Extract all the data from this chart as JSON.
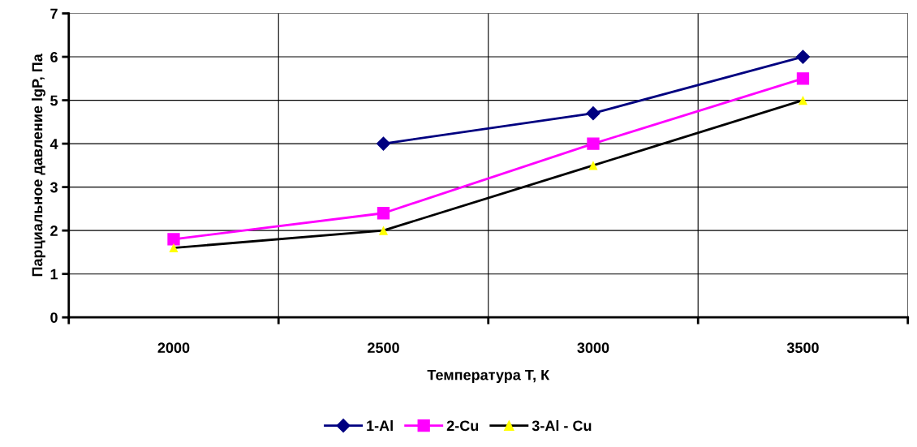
{
  "chart_data": {
    "type": "line",
    "xlabel": "Температура Т, К",
    "ylabel": "Парциальное давление lgP, Па",
    "categories": [
      "2000",
      "2500",
      "3000",
      "3500"
    ],
    "series": [
      {
        "name": "1-Al",
        "color": "#000080",
        "marker": "diamond",
        "values": [
          null,
          4.0,
          4.7,
          6.0
        ]
      },
      {
        "name": "2-Cu",
        "color": "#ff00ff",
        "marker": "square",
        "values": [
          1.8,
          2.4,
          4.0,
          5.5
        ]
      },
      {
        "name": "3-Al - Cu",
        "color": "#000000",
        "colors": [
          "#ffff00",
          "#ffff00",
          "#ffff00",
          "#ffff00"
        ],
        "marker": "triangle",
        "values": [
          1.6,
          2.0,
          3.5,
          5.0
        ]
      }
    ],
    "ylim": [
      0,
      7
    ],
    "yticks": [
      0,
      1,
      2,
      3,
      4,
      5,
      6,
      7
    ],
    "grid": true,
    "legend": "bottom",
    "line_style": "solid"
  }
}
